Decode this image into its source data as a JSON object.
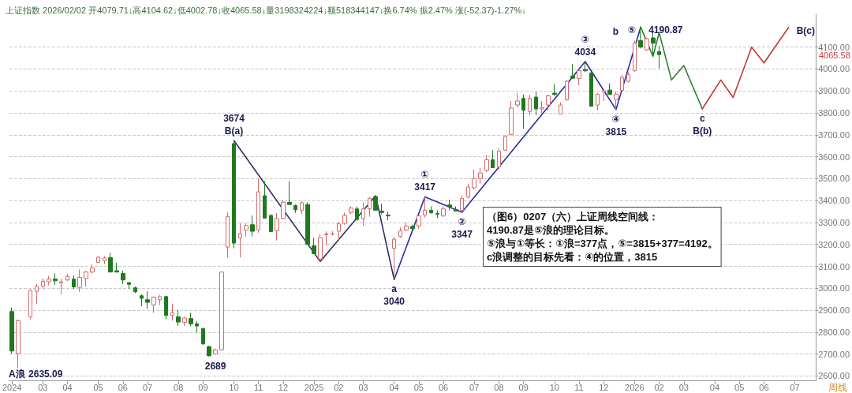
{
  "chart_data": {
    "type": "candlestick",
    "title": "上证指数 2026/02/02 开4079.71↓高4104.62↓低4002.78↓收4065.58↓量3198324224↓额518344147↓换6.74% 振2.47% 涨(-52.37)-1.27%↓",
    "x": [
      "2024-01-29",
      "2024-02-05",
      "2024-02-19",
      "2024-02-26",
      "2024-03-04",
      "2024-03-11",
      "2024-03-18",
      "2024-03-25",
      "2024-04-01",
      "2024-04-08",
      "2024-04-15",
      "2024-04-22",
      "2024-04-29",
      "2024-05-06",
      "2024-05-13",
      "2024-05-20",
      "2024-05-27",
      "2024-06-03",
      "2024-06-10",
      "2024-06-17",
      "2024-06-24",
      "2024-07-01",
      "2024-07-08",
      "2024-07-15",
      "2024-07-22",
      "2024-07-29",
      "2024-08-05",
      "2024-08-12",
      "2024-08-19",
      "2024-08-26",
      "2024-09-02",
      "2024-09-09",
      "2024-09-16",
      "2024-09-23",
      "2024-09-30",
      "2024-10-07",
      "2024-10-14",
      "2024-10-21",
      "2024-10-28",
      "2024-11-04",
      "2024-11-11",
      "2024-11-18",
      "2024-11-25",
      "2024-12-02",
      "2024-12-09",
      "2024-12-16",
      "2024-12-23",
      "2024-12-30",
      "2025-01-06",
      "2025-01-13",
      "2025-01-20",
      "2025-01-27",
      "2025-02-03",
      "2025-02-10",
      "2025-02-17",
      "2025-02-24",
      "2025-03-03",
      "2025-03-10",
      "2025-03-17",
      "2025-03-24",
      "2025-03-31",
      "2025-04-07",
      "2025-04-14",
      "2025-04-21",
      "2025-04-28",
      "2025-05-05",
      "2025-05-12",
      "2025-05-19",
      "2025-05-26",
      "2025-06-02",
      "2025-06-09",
      "2025-06-16",
      "2025-06-23",
      "2025-06-30",
      "2025-07-07",
      "2025-07-14",
      "2025-07-21",
      "2025-07-28",
      "2025-08-04",
      "2025-08-11",
      "2025-08-18",
      "2025-08-25",
      "2025-09-01",
      "2025-09-08",
      "2025-09-15",
      "2025-09-22",
      "2025-09-29",
      "2025-10-06",
      "2025-10-13",
      "2025-10-20",
      "2025-10-27",
      "2025-11-03",
      "2025-11-10",
      "2025-11-17",
      "2025-11-24",
      "2025-12-01",
      "2025-12-08",
      "2025-12-15",
      "2025-12-22",
      "2025-12-29",
      "2026-01-05",
      "2026-01-12",
      "2026-01-19",
      "2026-01-26",
      "2026-02-02"
    ],
    "ohlc": [
      [
        2894,
        2912,
        2702,
        2714
      ],
      [
        2702,
        2858,
        2635.09,
        2852
      ],
      [
        2870,
        2996,
        2858,
        2990
      ],
      [
        2986,
        3020,
        2930,
        3010
      ],
      [
        3010,
        3046,
        2996,
        3032
      ],
      [
        3030,
        3056,
        3014,
        3042
      ],
      [
        3042,
        3068,
        3014,
        3034
      ],
      [
        3024,
        3044,
        2972,
        3030
      ],
      [
        3038,
        3066,
        3032,
        3054
      ],
      [
        3042,
        3058,
        2996,
        3006
      ],
      [
        3004,
        3086,
        2984,
        3050
      ],
      [
        3044,
        3080,
        3008,
        3074
      ],
      [
        3074,
        3110,
        3068,
        3092
      ],
      [
        3118,
        3146,
        3116,
        3142
      ],
      [
        3126,
        3146,
        3110,
        3138
      ],
      [
        3140,
        3162,
        3074,
        3074
      ],
      [
        3080,
        3116,
        3072,
        3074
      ],
      [
        3068,
        3080,
        3020,
        3038
      ],
      [
        3026,
        3026,
        2998,
        3018
      ],
      [
        3002,
        3008,
        2978,
        2984
      ],
      [
        2966,
        2972,
        2918,
        2954
      ],
      [
        2948,
        2986,
        2906,
        2936
      ],
      [
        2924,
        2962,
        2888,
        2960
      ],
      [
        2948,
        2970,
        2924,
        2962
      ],
      [
        2962,
        2966,
        2858,
        2876
      ],
      [
        2876,
        2930,
        2852,
        2888
      ],
      [
        2870,
        2900,
        2828,
        2846
      ],
      [
        2844,
        2870,
        2828,
        2864
      ],
      [
        2862,
        2888,
        2828,
        2838
      ],
      [
        2838,
        2850,
        2798,
        2828
      ],
      [
        2816,
        2822,
        2744,
        2746
      ],
      [
        2734,
        2738,
        2689,
        2692
      ],
      [
        2700,
        2726,
        2696,
        2718
      ],
      [
        2720,
        3074,
        2716,
        3074
      ],
      [
        3188,
        3346,
        3140,
        3326
      ],
      [
        3660,
        3674,
        3182,
        3206
      ],
      [
        3230,
        3298,
        3140,
        3250
      ],
      [
        3266,
        3296,
        3236,
        3286
      ],
      [
        3290,
        3332,
        3236,
        3260
      ],
      [
        3266,
        3500,
        3254,
        3440
      ],
      [
        3422,
        3488,
        3320,
        3320
      ],
      [
        3332,
        3338,
        3258,
        3258
      ],
      [
        3262,
        3344,
        3218,
        3318
      ],
      [
        3318,
        3404,
        3314,
        3392
      ],
      [
        3392,
        3488,
        3382,
        3382
      ],
      [
        3378,
        3382,
        3344,
        3358
      ],
      [
        3356,
        3398,
        3338,
        3390
      ],
      [
        3382,
        3392,
        3200,
        3200
      ],
      [
        3194,
        3230,
        3158,
        3158
      ],
      [
        3134,
        3248,
        3122,
        3230
      ],
      [
        3244,
        3260,
        3194,
        3248
      ],
      [
        3246,
        3260,
        3242,
        3248
      ],
      [
        3260,
        3302,
        3218,
        3294
      ],
      [
        3296,
        3344,
        3290,
        3332
      ],
      [
        3346,
        3374,
        3338,
        3366
      ],
      [
        3362,
        3374,
        3308,
        3314
      ],
      [
        3318,
        3392,
        3284,
        3362
      ],
      [
        3362,
        3416,
        3326,
        3410
      ],
      [
        3418,
        3422,
        3356,
        3356
      ],
      [
        3352,
        3386,
        3338,
        3346
      ],
      [
        3334,
        3350,
        3310,
        3330
      ],
      [
        3182,
        3236,
        3040,
        3224
      ],
      [
        3236,
        3278,
        3230,
        3262
      ],
      [
        3266,
        3302,
        3260,
        3284
      ],
      [
        3282,
        3290,
        3266,
        3272
      ],
      [
        3284,
        3332,
        3272,
        3330
      ],
      [
        3334,
        3417,
        3322,
        3356
      ],
      [
        3356,
        3374,
        3342,
        3344
      ],
      [
        3342,
        3356,
        3320,
        3338
      ],
      [
        3330,
        3374,
        3326,
        3362
      ],
      [
        3380,
        3404,
        3356,
        3372
      ],
      [
        3360,
        3374,
        3350,
        3352
      ],
      [
        3356,
        3422,
        3347,
        3410
      ],
      [
        3416,
        3476,
        3410,
        3462
      ],
      [
        3458,
        3542,
        3452,
        3500
      ],
      [
        3500,
        3548,
        3476,
        3526
      ],
      [
        3538,
        3608,
        3530,
        3586
      ],
      [
        3586,
        3630,
        3548,
        3550
      ],
      [
        3554,
        3638,
        3542,
        3626
      ],
      [
        3630,
        3698,
        3626,
        3692
      ],
      [
        3702,
        3854,
        3698,
        3822
      ],
      [
        3836,
        3890,
        3824,
        3854
      ],
      [
        3866,
        3884,
        3728,
        3812
      ],
      [
        3806,
        3884,
        3788,
        3866
      ],
      [
        3872,
        3896,
        3790,
        3818
      ],
      [
        3818,
        3854,
        3800,
        3824
      ],
      [
        3836,
        3884,
        3812,
        3878
      ],
      [
        3890,
        3932,
        3878,
        3884
      ],
      [
        3794,
        3848,
        3794,
        3836
      ],
      [
        3860,
        3950,
        3854,
        3944
      ],
      [
        3968,
        4022,
        3956,
        3958
      ],
      [
        3956,
        3998,
        3926,
        3992
      ],
      [
        3998,
        4034,
        3986,
        3992
      ],
      [
        3982,
        3986,
        3830,
        3830
      ],
      [
        3836,
        3890,
        3812,
        3884
      ],
      [
        3896,
        3908,
        3854,
        3902
      ],
      [
        3904,
        3934,
        3884,
        3884
      ],
      [
        3860,
        3896,
        3815,
        3886
      ],
      [
        3902,
        3974,
        3896,
        3962
      ],
      [
        3944,
        3986,
        3938,
        3974
      ],
      [
        3992,
        4130,
        3986,
        4118
      ],
      [
        4130,
        4190.87,
        4094,
        4100
      ],
      [
        4088,
        4142,
        4082,
        4138
      ],
      [
        4142,
        4172,
        4064,
        4118
      ],
      [
        4079.71,
        4104.62,
        4002.78,
        4065.58
      ]
    ],
    "series": [
      {
        "type": "line",
        "color": "#2e2e66",
        "x": [
          "2024-10-07",
          "2025-01-13",
          "2025-03-17",
          "2025-04-07"
        ],
        "values": [
          3674,
          3122,
          3422,
          3040
        ]
      },
      {
        "type": "line",
        "color": "#2b2ba0",
        "x": [
          "2025-04-07",
          "2025-05-12",
          "2025-06-23",
          "2025-11-10",
          "2025-12-15",
          "2026-01-12"
        ],
        "values": [
          3040,
          3417,
          3347,
          4034,
          3815,
          4190.87
        ]
      },
      {
        "type": "line",
        "color": "#2e7d2e",
        "x": [
          "2026-01-12",
          "2026-01-26",
          "2026-02-02",
          "2026-02-16",
          "2026-03-02",
          "2026-03-23"
        ],
        "values": [
          4190.87,
          4058,
          4166,
          3950,
          4016,
          3818
        ]
      },
      {
        "type": "line",
        "color": "#c0392b",
        "x": [
          "2026-03-23",
          "2026-04-13",
          "2026-04-27",
          "2026-05-18",
          "2026-06-01",
          "2026-06-29"
        ],
        "values": [
          3818,
          3950,
          3870,
          4100,
          4028,
          4190
        ]
      }
    ],
    "xlim": [
      "2024-01-26",
      "2026-07-30"
    ],
    "xticks": [
      {
        "value": "2024-01-29",
        "label": "2024"
      },
      {
        "value": "2024-03-04",
        "label": "03"
      },
      {
        "value": "2024-04-01",
        "label": "04"
      },
      {
        "value": "2024-05-06",
        "label": "05"
      },
      {
        "value": "2024-06-03",
        "label": "06"
      },
      {
        "value": "2024-07-01",
        "label": "07"
      },
      {
        "value": "2024-08-05",
        "label": "08"
      },
      {
        "value": "2024-09-02",
        "label": "09"
      },
      {
        "value": "2024-10-07",
        "label": "10"
      },
      {
        "value": "2024-11-04",
        "label": "11"
      },
      {
        "value": "2024-12-02",
        "label": "12"
      },
      {
        "value": "2025-01-06",
        "label": "2025"
      },
      {
        "value": "2025-02-03",
        "label": "02"
      },
      {
        "value": "2025-03-03",
        "label": "03"
      },
      {
        "value": "2025-04-07",
        "label": "04"
      },
      {
        "value": "2025-05-05",
        "label": "05"
      },
      {
        "value": "2025-06-02",
        "label": "06"
      },
      {
        "value": "2025-07-07",
        "label": "07"
      },
      {
        "value": "2025-08-04",
        "label": "08"
      },
      {
        "value": "2025-09-01",
        "label": "09"
      },
      {
        "value": "2025-10-06",
        "label": "10"
      },
      {
        "value": "2025-11-03",
        "label": "11"
      },
      {
        "value": "2025-12-01",
        "label": "12"
      },
      {
        "value": "2026-01-05",
        "label": "2026"
      },
      {
        "value": "2026-02-02",
        "label": "02"
      },
      {
        "value": "2026-03-02",
        "label": "03"
      },
      {
        "value": "2026-04-06",
        "label": "04"
      },
      {
        "value": "2026-05-04",
        "label": "05"
      },
      {
        "value": "2026-06-01",
        "label": "06"
      },
      {
        "value": "2026-07-06",
        "label": "07"
      }
    ],
    "ylim": [
      2580,
      4250
    ],
    "yticks": [
      {
        "value": 2600,
        "label": "2600.00"
      },
      {
        "value": 2700,
        "label": "2700.00"
      },
      {
        "value": 2800,
        "label": "2800.00"
      },
      {
        "value": 2900,
        "label": "2900.00"
      },
      {
        "value": 3000,
        "label": "3000.00"
      },
      {
        "value": 3100,
        "label": "3100.00"
      },
      {
        "value": 3200,
        "label": "3200.00"
      },
      {
        "value": 3300,
        "label": "3300.00"
      },
      {
        "value": 3400,
        "label": "3400.00"
      },
      {
        "value": 3500,
        "label": "3500.00"
      },
      {
        "value": 3600,
        "label": "3600.00"
      },
      {
        "value": 3700,
        "label": "3700.00"
      },
      {
        "value": 3800,
        "label": "3800.00"
      },
      {
        "value": 3900,
        "label": "3900.00"
      },
      {
        "value": 4000,
        "label": "4000.00"
      },
      {
        "value": 4100,
        "label": "4100.00"
      }
    ],
    "grid": "y",
    "annotations": [
      "（图6）0207（六）上证周线空间线：\n4190.87是⑤浪的理论目标。\n⑤浪与①等长：①浪=377点，⑤=3815+377=4192。\nc浪调整的目标先看：④的位置，3815",
      "周线",
      "4065.58",
      {
        "text": "3674",
        "x": "2024-10-07",
        "y": 3674
      },
      {
        "text": "B(a)",
        "x": "2024-10-07",
        "y": 3674
      },
      {
        "text": "①",
        "x": "2025-05-12",
        "y": 3417
      },
      {
        "text": "3417",
        "x": "2025-05-12",
        "y": 3417
      },
      {
        "text": "a",
        "x": "2025-04-07",
        "y": 3040
      },
      {
        "text": "3040",
        "x": "2025-04-07",
        "y": 3040
      },
      {
        "text": "②",
        "x": "2025-06-23",
        "y": 3347
      },
      {
        "text": "3347",
        "x": "2025-06-23",
        "y": 3347
      },
      {
        "text": "③",
        "x": "2025-11-10",
        "y": 4034
      },
      {
        "text": "4034",
        "x": "2025-11-10",
        "y": 4034
      },
      {
        "text": "b",
        "x": "2026-01-12",
        "y": 4190.87
      },
      {
        "text": "⑤",
        "x": "2026-01-12",
        "y": 4190.87
      },
      {
        "text": "4190.87",
        "x": "2026-01-12",
        "y": 4190.87
      },
      {
        "text": "④",
        "x": "2025-12-15",
        "y": 3815
      },
      {
        "text": "3815",
        "x": "2025-12-15",
        "y": 3815
      },
      {
        "text": "c",
        "x": "2026-03-23",
        "y": 3818
      },
      {
        "text": "B(b)",
        "x": "2026-03-23",
        "y": 3818
      },
      {
        "text": "B(c)",
        "x": "2026-06-29",
        "y": 4190
      },
      {
        "text": "A浪",
        "x": "2024-02-05",
        "y": 2635.09
      },
      {
        "text": "2635.09",
        "x": "2024-02-05",
        "y": 2635.09
      },
      {
        "text": "2689",
        "x": "2024-09-16",
        "y": 2689
      }
    ]
  }
}
